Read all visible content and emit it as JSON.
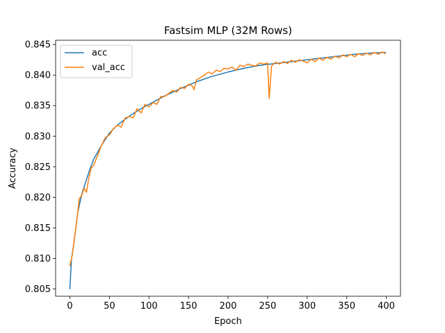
{
  "chart_data": {
    "type": "line",
    "title": "Fastsim MLP (32M Rows)",
    "xlabel": "Epoch",
    "ylabel": "Accuracy",
    "xlim": [
      -18,
      418
    ],
    "ylim": [
      0.8038,
      0.8457
    ],
    "xticks": [
      0,
      50,
      100,
      150,
      200,
      250,
      300,
      350,
      400
    ],
    "xtick_labels": [
      "0",
      "50",
      "100",
      "150",
      "200",
      "250",
      "300",
      "350",
      "400"
    ],
    "yticks": [
      0.805,
      0.81,
      0.815,
      0.82,
      0.825,
      0.83,
      0.835,
      0.84,
      0.845
    ],
    "ytick_labels": [
      "0.805",
      "0.810",
      "0.815",
      "0.820",
      "0.825",
      "0.830",
      "0.835",
      "0.840",
      "0.845"
    ],
    "grid": false,
    "legend_position": "upper-left",
    "series": [
      {
        "name": "acc",
        "color": "#1f77b4",
        "x": [
          0,
          2,
          5,
          10,
          15,
          20,
          25,
          30,
          40,
          50,
          60,
          70,
          80,
          90,
          100,
          120,
          140,
          160,
          180,
          200,
          220,
          240,
          260,
          280,
          300,
          320,
          340,
          360,
          380,
          399
        ],
        "y": [
          0.805,
          0.8098,
          0.8125,
          0.8175,
          0.8205,
          0.8225,
          0.8245,
          0.8262,
          0.8285,
          0.8305,
          0.8318,
          0.8328,
          0.8337,
          0.8345,
          0.8352,
          0.8366,
          0.8378,
          0.8389,
          0.8398,
          0.8405,
          0.8411,
          0.8416,
          0.8419,
          0.8422,
          0.8425,
          0.8428,
          0.8431,
          0.8434,
          0.8436,
          0.8437
        ]
      },
      {
        "name": "val_acc",
        "color": "#ff7f0e",
        "x": [
          0,
          3,
          6,
          9,
          12,
          15,
          18,
          21,
          24,
          27,
          30,
          35,
          40,
          45,
          50,
          55,
          60,
          65,
          70,
          75,
          80,
          85,
          90,
          95,
          100,
          105,
          110,
          115,
          120,
          125,
          130,
          135,
          140,
          145,
          150,
          155,
          157,
          160,
          165,
          170,
          175,
          180,
          185,
          190,
          195,
          200,
          205,
          210,
          215,
          220,
          225,
          230,
          235,
          240,
          245,
          250,
          252,
          255,
          260,
          265,
          270,
          275,
          280,
          285,
          290,
          295,
          300,
          305,
          310,
          315,
          320,
          325,
          330,
          335,
          340,
          345,
          350,
          355,
          360,
          365,
          370,
          375,
          380,
          385,
          390,
          395,
          399
        ],
        "y": [
          0.8088,
          0.8105,
          0.8135,
          0.8165,
          0.8198,
          0.8203,
          0.8215,
          0.8208,
          0.8232,
          0.8248,
          0.8252,
          0.8268,
          0.8285,
          0.8298,
          0.8302,
          0.8312,
          0.8318,
          0.8315,
          0.833,
          0.8332,
          0.833,
          0.8345,
          0.8338,
          0.8352,
          0.8348,
          0.8355,
          0.8352,
          0.8365,
          0.8365,
          0.837,
          0.8375,
          0.8372,
          0.838,
          0.8378,
          0.8385,
          0.8382,
          0.8376,
          0.8392,
          0.8396,
          0.84,
          0.8405,
          0.8402,
          0.8408,
          0.8406,
          0.8411,
          0.841,
          0.8413,
          0.8408,
          0.8416,
          0.8414,
          0.8418,
          0.8416,
          0.8415,
          0.842,
          0.8418,
          0.842,
          0.8362,
          0.8415,
          0.8421,
          0.8418,
          0.8422,
          0.8419,
          0.8424,
          0.8421,
          0.8425,
          0.8423,
          0.842,
          0.8426,
          0.8422,
          0.8428,
          0.8424,
          0.8429,
          0.8426,
          0.8431,
          0.8428,
          0.8433,
          0.843,
          0.8434,
          0.843,
          0.8435,
          0.8432,
          0.8436,
          0.8433,
          0.8437,
          0.8434,
          0.8438,
          0.8435
        ]
      }
    ]
  }
}
